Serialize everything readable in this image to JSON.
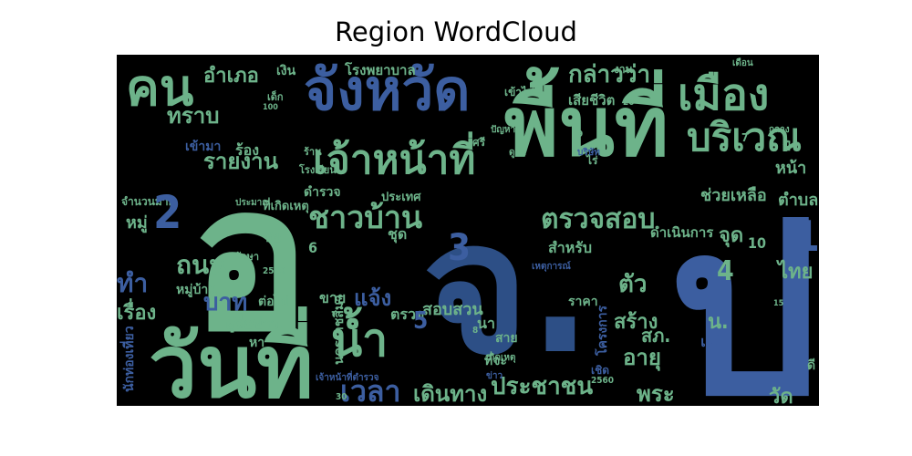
{
  "chart_data": {
    "type": "wordcloud",
    "title": "Region WordCloud",
    "background": "#000000",
    "palette": [
      "#6db38a",
      "#3c5ea0",
      "#2d4f86",
      "#5aa98c",
      "#4a6aa8"
    ],
    "words": [
      {
        "text": "จ.",
        "weight": 100
      },
      {
        "text": "ป",
        "weight": 95
      },
      {
        "text": "อ",
        "weight": 92
      },
      {
        "text": "พื้นที่",
        "weight": 70
      },
      {
        "text": "วันที่",
        "weight": 60
      },
      {
        "text": "จังหวัด",
        "weight": 50
      },
      {
        "text": "คน",
        "weight": 48
      },
      {
        "text": "เมือง",
        "weight": 42
      },
      {
        "text": "เจ้าหน้าที่",
        "weight": 40
      },
      {
        "text": "บริเวณ",
        "weight": 38
      },
      {
        "text": "น้ำ",
        "weight": 38
      },
      {
        "text": "ตรวจสอบ",
        "weight": 30
      },
      {
        "text": "ชาวบ้าน",
        "weight": 30
      },
      {
        "text": "ประชาชน",
        "weight": 26
      },
      {
        "text": "เวลา",
        "weight": 26
      },
      {
        "text": "ถนน",
        "weight": 26
      },
      {
        "text": "กล่าวว่า",
        "weight": 24
      },
      {
        "text": "อำเภอ",
        "weight": 22
      },
      {
        "text": "รายงาน",
        "weight": 22
      },
      {
        "text": "ทราบ",
        "weight": 22
      },
      {
        "text": "สร้าง",
        "weight": 22
      },
      {
        "text": "ตัว",
        "weight": 22
      },
      {
        "text": "อายุ",
        "weight": 22
      },
      {
        "text": "เดินทาง",
        "weight": 22
      },
      {
        "text": "เรื่อง",
        "weight": 20
      },
      {
        "text": "บาท",
        "weight": 20
      },
      {
        "text": "ไทย",
        "weight": 20
      },
      {
        "text": "วัด",
        "weight": 20
      },
      {
        "text": "พระ",
        "weight": 20
      },
      {
        "text": "แจ้ง",
        "weight": 18
      },
      {
        "text": "ช่วยเหลือ",
        "weight": 16
      },
      {
        "text": "สอบสวน",
        "weight": 16
      },
      {
        "text": "ดำเนินการ",
        "weight": 14
      },
      {
        "text": "โรงพยาบาล",
        "weight": 14
      },
      {
        "text": "เสียชีวิต",
        "weight": 14
      },
      {
        "text": "ผู้สื่อข่าว",
        "weight": 14
      },
      {
        "text": "หมู่",
        "weight": 14
      },
      {
        "text": "ทำ",
        "weight": 18
      },
      {
        "text": "ที่เกิดเหตุ",
        "weight": 12
      },
      {
        "text": "ดำรวจ",
        "weight": 12
      },
      {
        "text": "ประเทศ",
        "weight": 12
      },
      {
        "text": "เงิน",
        "weight": 12
      },
      {
        "text": "ร้อง",
        "weight": 12
      },
      {
        "text": "เข้ามา",
        "weight": 12
      },
      {
        "text": "หมู่บ้าน",
        "weight": 12
      },
      {
        "text": "ต่อไป",
        "weight": 12
      },
      {
        "text": "ขาย",
        "weight": 12
      },
      {
        "text": "ตรวจ",
        "weight": 12
      },
      {
        "text": "สำหรับ",
        "weight": 12
      },
      {
        "text": "จุด",
        "weight": 16
      },
      {
        "text": "ตำบล",
        "weight": 14
      },
      {
        "text": "หน้า",
        "weight": 12
      },
      {
        "text": "ราคา",
        "weight": 10
      },
      {
        "text": "นครราชสีมา",
        "weight": 10
      },
      {
        "text": "เจ้าหน้าที่ตำรวจ",
        "weight": 8
      },
      {
        "text": "ที่จะ",
        "weight": 10
      },
      {
        "text": "โครงการ",
        "weight": 10
      },
      {
        "text": "นักท่องเที่ยว",
        "weight": 10
      },
      {
        "text": "เชิด",
        "weight": 10
      },
      {
        "text": "น.",
        "weight": 16
      },
      {
        "text": "สภ.",
        "weight": 18
      },
      {
        "text": "แม่",
        "weight": 14
      },
      {
        "text": "จำนวนมาก",
        "weight": 8
      },
      {
        "text": "โรงเรียน",
        "weight": 8
      },
      {
        "text": "ชัย",
        "weight": 10
      },
      {
        "text": "ชุด",
        "weight": 10
      },
      {
        "text": "นา",
        "weight": 10
      },
      {
        "text": "สาย",
        "weight": 10
      },
      {
        "text": "ป่า",
        "weight": 10
      },
      {
        "text": "เด็ก",
        "weight": 8
      },
      {
        "text": "ร้าน",
        "weight": 8
      },
      {
        "text": "ศรี",
        "weight": 8
      },
      {
        "text": "ไร่",
        "weight": 8
      },
      {
        "text": "ปัญหา",
        "weight": 6
      },
      {
        "text": "ดูแล",
        "weight": 6
      },
      {
        "text": "เข้าไป",
        "weight": 8
      },
      {
        "text": "งาน",
        "weight": 8
      },
      {
        "text": "ข่าว",
        "weight": 6
      },
      {
        "text": "บริษัท",
        "weight": 6
      },
      {
        "text": "รักษา",
        "weight": 6
      },
      {
        "text": "ประมาณ",
        "weight": 6
      },
      {
        "text": "เหตุการณ์",
        "weight": 6
      },
      {
        "text": "เกิดเหตุ",
        "weight": 6
      },
      {
        "text": "เดือน",
        "weight": 6
      },
      {
        "text": "กลาง",
        "weight": 6
      },
      {
        "text": "ดี",
        "weight": 8
      },
      {
        "text": "หา",
        "weight": 8
      },
      {
        "text": "2560",
        "weight": 6
      },
      {
        "text": "2559",
        "weight": 6
      },
      {
        "text": "30",
        "weight": 6
      },
      {
        "text": "20",
        "weight": 6
      },
      {
        "text": "100",
        "weight": 6
      },
      {
        "text": "15",
        "weight": 6
      },
      {
        "text": "9",
        "weight": 6
      },
      {
        "text": "8",
        "weight": 6
      },
      {
        "text": "7",
        "weight": 6
      },
      {
        "text": "10",
        "weight": 12
      },
      {
        "text": "6",
        "weight": 12
      },
      {
        "text": "5",
        "weight": 18
      },
      {
        "text": "4",
        "weight": 22
      },
      {
        "text": "3",
        "weight": 26
      },
      {
        "text": "2",
        "weight": 36
      },
      {
        "text": "1",
        "weight": 32
      }
    ]
  }
}
